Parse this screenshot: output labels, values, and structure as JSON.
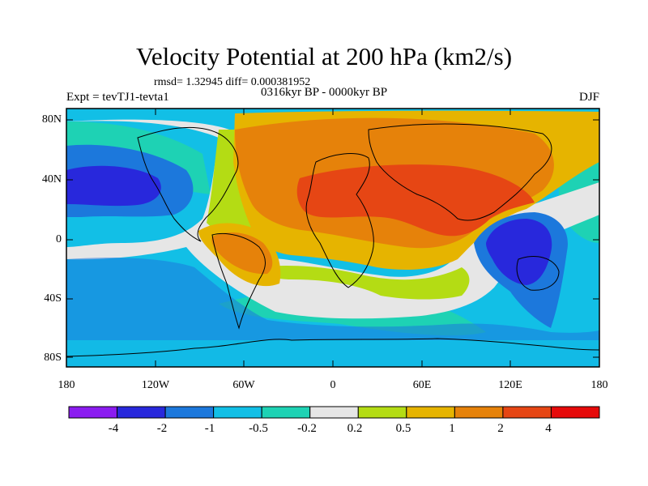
{
  "title": "Velocity Potential at 200 hPa (km2/s)",
  "stats": "rmsd= 1.32945 diff= 0.000381952",
  "subtitle": "0316kyr BP - 0000kyr BP",
  "experiment": "Expt = tevTJ1-tevta1",
  "season": "DJF",
  "lat_labels": [
    "80N",
    "40N",
    "0",
    "40S",
    "80S"
  ],
  "lon_labels": [
    "180",
    "120W",
    "60W",
    "0",
    "60E",
    "120E",
    "180"
  ],
  "colorbar": {
    "labels": [
      "-4",
      "-2",
      "-1",
      "-0.5",
      "-0.2",
      "0.2",
      "0.5",
      "1",
      "2",
      "4"
    ],
    "colors": [
      "#8b1cf0",
      "#2828dc",
      "#1c78dc",
      "#12bfe6",
      "#1ed2b4",
      "#e6e6e6",
      "#b4dc14",
      "#e6b400",
      "#e6820a",
      "#e64614",
      "#e60a0a"
    ]
  },
  "colors": {
    "deep_blue": "#2828dc",
    "mid_blue": "#1c78dc",
    "light_blue": "#12bfe6",
    "teal": "#1ed2b4",
    "neutral": "#e6e6e6",
    "yellow_green": "#b4dc14",
    "gold": "#e6b400",
    "orange": "#e6820a",
    "red_orange": "#e64614"
  }
}
